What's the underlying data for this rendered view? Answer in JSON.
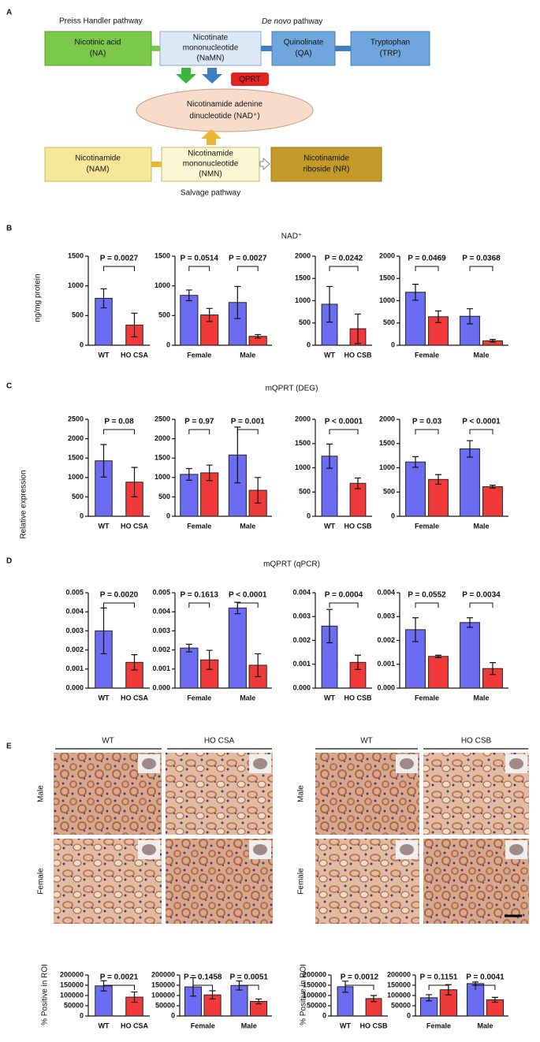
{
  "figure": {
    "panel_labels": [
      "A",
      "B",
      "C",
      "D",
      "E"
    ],
    "diagram": {
      "preiss": "Preiss Handler pathway",
      "denovo": {
        "italic": "De novo",
        "text": " pathway"
      },
      "salvage": "Salvage pathway",
      "qprt": "QPRT",
      "na": [
        "Nicotinic acid",
        "(NA)"
      ],
      "namn": [
        "Nicotinate",
        "mononucleotide",
        "(NaMN)"
      ],
      "qa": [
        "Quinolinate",
        "(QA)"
      ],
      "trp": [
        "Tryptophan",
        "(TRP)"
      ],
      "nad": [
        "Nicotinamide adenine",
        "dinucleotide (NAD⁺)"
      ],
      "nam": [
        "Nicotinamide",
        "(NAM)"
      ],
      "nmn": [
        "Nicotinamide",
        "mononucleotide",
        "(NMN)"
      ],
      "nr": [
        "Nicotinamide",
        "riboside (NR)"
      ]
    },
    "row_titles": [
      "NAD⁺",
      "mQPRT (DEG)",
      "mQPRT (qPCR)"
    ],
    "y_labels": [
      "ng/mg protein",
      "Relative expression",
      "% Positive in ROI",
      "% Positive in ROI"
    ],
    "histology": {
      "columns": [
        "WT",
        "HO CSA",
        "WT",
        "HO CSB"
      ],
      "rows": [
        "Male",
        "Female",
        "Male",
        "Female"
      ]
    }
  },
  "chart_data": [
    {
      "type": "bar",
      "categories": [
        "WT",
        "HO CSA"
      ],
      "values": [
        790,
        340
      ],
      "errors": [
        160,
        200
      ],
      "colors": [
        "#6c6cf2",
        "#f03a3a"
      ],
      "ylim": [
        0,
        1500
      ],
      "yticks": [
        0,
        500,
        1000,
        1500
      ],
      "p_values": [
        "P = 0.0027"
      ]
    },
    {
      "type": "grouped_bar",
      "categories": [
        "Female",
        "Male"
      ],
      "values": [
        [
          840,
          510
        ],
        [
          720,
          150
        ]
      ],
      "errors": [
        [
          90,
          110
        ],
        [
          270,
          30
        ]
      ],
      "colors": [
        "#6c6cf2",
        "#f03a3a"
      ],
      "ylim": [
        0,
        1500
      ],
      "yticks": [
        0,
        500,
        1000,
        1500
      ],
      "p_values": [
        "P = 0.0514",
        "P = 0.0027"
      ]
    },
    {
      "type": "bar",
      "categories": [
        "WT",
        "HO CSB"
      ],
      "values": [
        920,
        370
      ],
      "errors": [
        400,
        330
      ],
      "colors": [
        "#6c6cf2",
        "#f03a3a"
      ],
      "ylim": [
        0,
        2000
      ],
      "yticks": [
        0,
        500,
        1000,
        1500,
        2000
      ],
      "p_values": [
        "P = 0.0242"
      ]
    },
    {
      "type": "grouped_bar",
      "categories": [
        "Female",
        "Male"
      ],
      "values": [
        [
          1190,
          640
        ],
        [
          650,
          100
        ]
      ],
      "errors": [
        [
          180,
          130
        ],
        [
          170,
          30
        ]
      ],
      "colors": [
        "#6c6cf2",
        "#f03a3a"
      ],
      "ylim": [
        0,
        2000
      ],
      "yticks": [
        0,
        500,
        1000,
        1500,
        2000
      ],
      "p_values": [
        "P = 0.0469",
        "P = 0.0368"
      ]
    },
    {
      "type": "bar",
      "categories": [
        "WT",
        "HO CSA"
      ],
      "values": [
        1430,
        880
      ],
      "errors": [
        420,
        380
      ],
      "colors": [
        "#6c6cf2",
        "#f03a3a"
      ],
      "ylim": [
        0,
        2500
      ],
      "yticks": [
        0,
        500,
        1000,
        1500,
        2000,
        2500
      ],
      "p_values": [
        "P = 0.08"
      ]
    },
    {
      "type": "grouped_bar",
      "categories": [
        "Female",
        "Male"
      ],
      "values": [
        [
          1080,
          1120
        ],
        [
          1580,
          670
        ]
      ],
      "errors": [
        [
          150,
          200
        ],
        [
          720,
          330
        ]
      ],
      "colors": [
        "#6c6cf2",
        "#f03a3a"
      ],
      "ylim": [
        0,
        2500
      ],
      "yticks": [
        0,
        500,
        1000,
        1500,
        2000,
        2500
      ],
      "p_values": [
        "P = 0.97",
        "P = 0.001"
      ]
    },
    {
      "type": "bar",
      "categories": [
        "WT",
        "HO CSB"
      ],
      "values": [
        1240,
        680
      ],
      "errors": [
        250,
        110
      ],
      "colors": [
        "#6c6cf2",
        "#f03a3a"
      ],
      "ylim": [
        0,
        2000
      ],
      "yticks": [
        0,
        500,
        1000,
        1500,
        2000
      ],
      "p_values": [
        "P < 0.0001"
      ]
    },
    {
      "type": "grouped_bar",
      "categories": [
        "Female",
        "Male"
      ],
      "values": [
        [
          1120,
          760
        ],
        [
          1390,
          610
        ]
      ],
      "errors": [
        [
          110,
          100
        ],
        [
          170,
          30
        ]
      ],
      "colors": [
        "#6c6cf2",
        "#f03a3a"
      ],
      "ylim": [
        0,
        2000
      ],
      "yticks": [
        0,
        500,
        1000,
        1500,
        2000
      ],
      "p_values": [
        "P = 0.03",
        "P < 0.0001"
      ]
    },
    {
      "type": "bar",
      "categories": [
        "WT",
        "HO CSA"
      ],
      "values": [
        0.003,
        0.00135
      ],
      "errors": [
        0.0012,
        0.0004
      ],
      "colors": [
        "#6c6cf2",
        "#f03a3a"
      ],
      "ylim": [
        0,
        0.005
      ],
      "yticks": [
        {
          "value": 0,
          "label": "0.000"
        },
        {
          "value": 0.001,
          "label": "0.001"
        },
        {
          "value": 0.002,
          "label": "0.002"
        },
        {
          "value": 0.003,
          "label": "0.003"
        },
        {
          "value": 0.004,
          "label": "0.004"
        },
        {
          "value": 0.005,
          "label": "0.005"
        }
      ],
      "p_values": [
        "P = 0.0020"
      ]
    },
    {
      "type": "grouped_bar",
      "categories": [
        "Female",
        "Male"
      ],
      "values": [
        [
          0.0021,
          0.00148
        ],
        [
          0.0042,
          0.0012
        ]
      ],
      "errors": [
        [
          0.0002,
          0.0005
        ],
        [
          0.0003,
          0.0006
        ]
      ],
      "colors": [
        "#6c6cf2",
        "#f03a3a"
      ],
      "ylim": [
        0,
        0.005
      ],
      "yticks": [
        {
          "value": 0,
          "label": "0.000"
        },
        {
          "value": 0.001,
          "label": "0.001"
        },
        {
          "value": 0.002,
          "label": "0.002"
        },
        {
          "value": 0.003,
          "label": "0.003"
        },
        {
          "value": 0.004,
          "label": "0.004"
        },
        {
          "value": 0.005,
          "label": "0.005"
        }
      ],
      "p_values": [
        "P = 0.1613",
        "P < 0.0001"
      ]
    },
    {
      "type": "bar",
      "categories": [
        "WT",
        "HO CSB"
      ],
      "values": [
        0.0026,
        0.00108
      ],
      "errors": [
        0.0007,
        0.0003
      ],
      "colors": [
        "#6c6cf2",
        "#f03a3a"
      ],
      "ylim": [
        0,
        0.004
      ],
      "yticks": [
        {
          "value": 0,
          "label": "0.000"
        },
        {
          "value": 0.001,
          "label": "0.001"
        },
        {
          "value": 0.002,
          "label": "0.002"
        },
        {
          "value": 0.003,
          "label": "0.003"
        },
        {
          "value": 0.004,
          "label": "0.004"
        }
      ],
      "p_values": [
        "P = 0.0004"
      ]
    },
    {
      "type": "grouped_bar",
      "categories": [
        "Female",
        "Male"
      ],
      "values": [
        [
          0.00245,
          0.00133
        ],
        [
          0.00275,
          0.00082
        ]
      ],
      "errors": [
        [
          0.0005,
          5e-05
        ],
        [
          0.0002,
          0.00025
        ]
      ],
      "colors": [
        "#6c6cf2",
        "#f03a3a"
      ],
      "ylim": [
        0,
        0.004
      ],
      "yticks": [
        {
          "value": 0,
          "label": "0.000"
        },
        {
          "value": 0.001,
          "label": "0.001"
        },
        {
          "value": 0.002,
          "label": "0.002"
        },
        {
          "value": 0.003,
          "label": "0.003"
        },
        {
          "value": 0.004,
          "label": "0.004"
        }
      ],
      "p_values": [
        "P = 0.0552",
        "P = 0.0034"
      ]
    },
    {
      "type": "bar",
      "categories": [
        "WT",
        "HO CSA"
      ],
      "values": [
        147000,
        92000
      ],
      "errors": [
        25000,
        25000
      ],
      "colors": [
        "#6c6cf2",
        "#f03a3a"
      ],
      "ylim": [
        0,
        200000
      ],
      "yticks": [
        0,
        50000,
        100000,
        150000,
        200000
      ],
      "p_values": [
        "P = 0.0021"
      ]
    },
    {
      "type": "grouped_bar",
      "categories": [
        "Female",
        "Male"
      ],
      "values": [
        [
          142000,
          103000
        ],
        [
          149000,
          71000
        ]
      ],
      "errors": [
        [
          45000,
          20000
        ],
        [
          22000,
          12000
        ]
      ],
      "colors": [
        "#6c6cf2",
        "#f03a3a"
      ],
      "ylim": [
        0,
        200000
      ],
      "yticks": [
        0,
        50000,
        100000,
        150000,
        200000
      ],
      "p_values": [
        "P = 0.1458",
        "P = 0.0051"
      ]
    },
    {
      "type": "bar",
      "categories": [
        "WT",
        "HO CSB"
      ],
      "values": [
        143000,
        85000
      ],
      "errors": [
        27000,
        15000
      ],
      "colors": [
        "#6c6cf2",
        "#f03a3a"
      ],
      "ylim": [
        0,
        200000
      ],
      "yticks": [
        0,
        50000,
        100000,
        150000,
        200000
      ],
      "p_values": [
        "P = 0.0012"
      ]
    },
    {
      "type": "grouped_bar",
      "categories": [
        "Female",
        "Male"
      ],
      "values": [
        [
          89000,
          128000
        ],
        [
          158000,
          79000
        ]
      ],
      "errors": [
        [
          15000,
          25000
        ],
        [
          8000,
          12000
        ]
      ],
      "colors": [
        "#6c6cf2",
        "#f03a3a"
      ],
      "ylim": [
        0,
        200000
      ],
      "yticks": [
        0,
        50000,
        100000,
        150000,
        200000
      ],
      "p_values": [
        "P = 0.1151",
        "P = 0.0041"
      ]
    }
  ]
}
